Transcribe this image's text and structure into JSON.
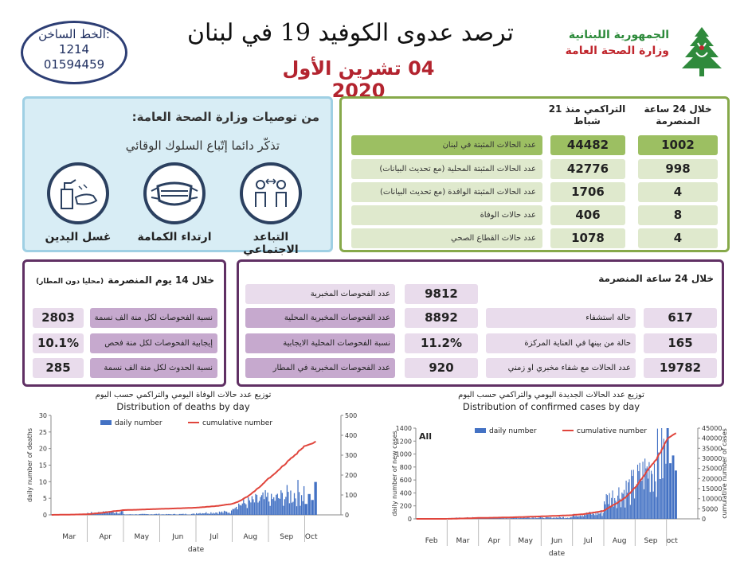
{
  "header": {
    "hotline_label": "الخط الساخن:",
    "hotline_number1": "1214",
    "hotline_number2": "01594459",
    "title": "ترصد عدوى الكوفيد 19 في لبنان",
    "date": "04 تشرين الأول 2020",
    "ministry_line1": "الجمهورية اللبنانية",
    "ministry_line2": "وزارة الصحة العامة"
  },
  "recommendations": {
    "title": "من توصيات وزارة الصحة العامة:",
    "subtitle": "تذكّر دائما إتّباع السلوك الوقائي",
    "items": [
      {
        "label": "التباعد الاجتماعي",
        "icon": "social-distancing-icon"
      },
      {
        "label": "ارتداء الكمامة",
        "icon": "face-mask-icon"
      },
      {
        "label": "غسل اليدين",
        "icon": "hand-washing-icon"
      }
    ]
  },
  "summary": {
    "col_24h": "خلال 24 ساعة المنصرمة",
    "col_cum": "التراكمي منذ 21 شباط",
    "rows": [
      {
        "label": "عدد الحالات المثبتة في لبنان",
        "cum": "44482",
        "day": "1002"
      },
      {
        "label": "عدد الحالات المثبتة المحلية (مع تحديث البيانات)",
        "cum": "42776",
        "day": "998"
      },
      {
        "label": "عدد الحالات المثبتة الوافدة (مع تحديث البيانات)",
        "cum": "1706",
        "day": "4"
      },
      {
        "label": "عدد حالات الوفاة",
        "cum": "406",
        "day": "8"
      },
      {
        "label": "عدد حالات القطاع الصحي",
        "cum": "1078",
        "day": "4"
      }
    ]
  },
  "panel14": {
    "title": "خلال 14 يوم المنصرمة",
    "note": "(محليا دون المطار)",
    "rows": [
      {
        "label": "نسبة الفحوصات لكل منة الف نسمة",
        "value": "2803"
      },
      {
        "label": "إيجابية الفحوصات لكل منة فحص",
        "value": "10.1%"
      },
      {
        "label": "نسبة الحدوث لكل منة الف نسمة",
        "value": "285"
      }
    ]
  },
  "panel24": {
    "title": "خلال 24 ساعة المنصرمة",
    "tests": [
      {
        "label": "عدد الفحوصات المخبرية",
        "value": "9812"
      },
      {
        "label": "عدد الفحوصات المخبرية المحلية",
        "value": "8892"
      },
      {
        "label": "نسبة الفحوصات المحلية الايجابية",
        "value": "11.2%"
      },
      {
        "label": "عدد الفحوصات المخبرية في المطار",
        "value": "920"
      }
    ],
    "hospital": [
      {
        "label": "حالة استشفاء",
        "value": "617"
      },
      {
        "label": "حالة من بينها في العناية المركزة",
        "value": "165"
      },
      {
        "label": "عدد الحالات مع شفاء مخبري او زمني",
        "value": "19782"
      }
    ]
  },
  "chart_data": [
    {
      "type": "bar",
      "title_ar": "توزيع عدد حالات  الوفاة اليومي والتراكمي حسب اليوم",
      "title": "Distribution of deaths by day",
      "xlabel": "date",
      "ylabel": "daily number of deaths",
      "ylabel_right": "cumulative number of deaths",
      "ylim": [
        0,
        30
      ],
      "ylim_right": [
        0,
        500
      ],
      "yticks": [
        0,
        5,
        10,
        15,
        20,
        25,
        30
      ],
      "yticks_right": [
        0,
        100,
        200,
        300,
        400,
        500
      ],
      "months": [
        "Mar",
        "Apr",
        "May",
        "Jun",
        "Jul",
        "Aug",
        "Sep",
        "Oct"
      ],
      "legend_position": "top",
      "colors": {
        "bars": "#4472c4",
        "line": "#e0453c"
      },
      "series": [
        {
          "name": "daily number",
          "kind": "bar",
          "monthly_totals": [
            3,
            21,
            6,
            6,
            19,
            126,
            164,
            24
          ]
        },
        {
          "name": "cumulative number",
          "kind": "line",
          "month_end_values": [
            3,
            24,
            30,
            36,
            55,
            181,
            345,
            406
          ]
        }
      ]
    },
    {
      "type": "bar",
      "title_ar": "توزيع عدد الحالات الجديدة اليومي والتراكمي حسب اليوم",
      "title": "Distribution of confirmed cases by day",
      "filter_label": "All",
      "xlabel": "date",
      "ylabel": "daily number of new cases",
      "ylabel_right": "cumulative number of cases",
      "ylim": [
        0,
        1400
      ],
      "ylim_right": [
        0,
        45000
      ],
      "yticks": [
        0,
        200,
        400,
        600,
        800,
        1000,
        1200,
        1400
      ],
      "yticks_right": [
        0,
        5000,
        10000,
        15000,
        20000,
        25000,
        30000,
        35000,
        40000,
        45000
      ],
      "months": [
        "Feb",
        "Mar",
        "Apr",
        "May",
        "Jun",
        "Jul",
        "Aug",
        "Sep",
        "oct"
      ],
      "legend_position": "top",
      "colors": {
        "bars": "#4472c4",
        "line": "#e0453c"
      },
      "series": [
        {
          "name": "daily number",
          "kind": "bar",
          "monthly_totals": [
            3,
            460,
            260,
            500,
            600,
            2100,
            11400,
            23000,
            4200
          ]
        },
        {
          "name": "cumulative number",
          "kind": "line",
          "month_end_values": [
            3,
            463,
            723,
            1223,
            1823,
            3923,
            15323,
            38323,
            44482
          ]
        }
      ]
    }
  ]
}
